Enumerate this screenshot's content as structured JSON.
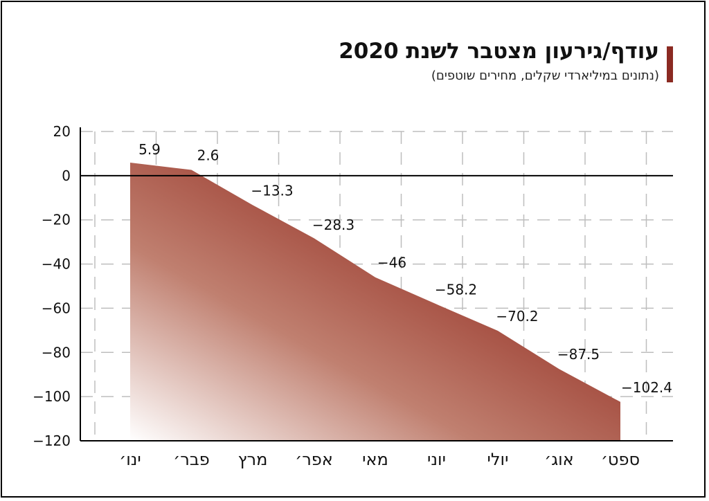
{
  "header": {
    "title": "עודף/גירעון מצטבר לשנת 2020",
    "subtitle": "(נתונים במיליארדי שקלים, מחירים שוטפים)"
  },
  "colors": {
    "accent": "#8b2a22",
    "fill_dark": "#8b2a22",
    "fill_light": "#ffffff",
    "grid": "#bdbdbd"
  },
  "chart_data": {
    "type": "area",
    "title": "עודף/גירעון מצטבר לשנת 2020",
    "subtitle": "(נתונים במיליארדי שקלים, מחירים שוטפים)",
    "categories": [
      "ינו׳",
      "פבר׳",
      "מרץ",
      "אפר׳",
      "מאי",
      "יוני",
      "יולי",
      "אוג׳",
      "ספט׳"
    ],
    "values": [
      5.9,
      2.6,
      -13.3,
      -28.3,
      -46,
      -58.2,
      -70.2,
      -87.5,
      -102.4
    ],
    "data_labels": [
      "5.9",
      "2.6",
      "−13.3",
      "−28.3",
      "−46",
      "−58.2",
      "−70.2",
      "−87.5",
      "−102.4"
    ],
    "ylim": [
      -120,
      20
    ],
    "yticks": [
      20,
      0,
      -20,
      -40,
      -60,
      -80,
      -100,
      -120
    ],
    "ytick_labels": [
      "20",
      "0",
      "−20",
      "−40",
      "−60",
      "−80",
      "−100",
      "−120"
    ],
    "grid": true
  }
}
